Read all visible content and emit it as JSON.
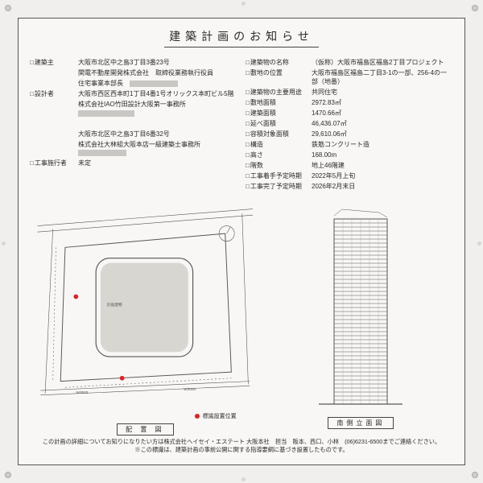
{
  "title": "建築計画のお知らせ",
  "left": [
    {
      "label": "建築主",
      "lines": [
        "大阪市北区中之島3丁目3番23号",
        "関電不動産開発株式会社　取締役業務執行役員",
        "住宅事業本部長　<R60>"
      ]
    },
    {
      "label": "設計者",
      "lines": [
        "大阪市西区西本町1丁目4番1号オリックス本町ビル5階",
        "株式会社IAO竹田設計大阪第一事務所　<R70>",
        "",
        "大阪市北区中之島3丁目6番32号",
        "株式会社大林組大阪本店一級建築士事務所　<R60>"
      ]
    },
    {
      "label": "工事施行者",
      "lines": [
        "未定"
      ]
    }
  ],
  "right": [
    {
      "label": "建築物の名称",
      "value": "（仮称）大阪市福島区福島2丁目プロジェクト"
    },
    {
      "label": "敷地の位置",
      "value": "大阪市福島区福島二丁目3-1の一部、256-4の一部（地番）"
    },
    {
      "label": "建築物の主要用途",
      "value": "共同住宅"
    },
    {
      "label": "敷地面積",
      "value": "2972.83㎡"
    },
    {
      "label": "建築面積",
      "value": "1470.66㎡"
    },
    {
      "label": "延べ面積",
      "value": "46,436.07㎡"
    },
    {
      "label": "容積対象面積",
      "value": "29,610.06㎡"
    },
    {
      "label": "構造",
      "value": "鉄筋コンクリート造"
    },
    {
      "label": "高さ",
      "value": "168.00m"
    },
    {
      "label": "階数",
      "value": "地上46階建"
    },
    {
      "label": "工事着手予定時期",
      "value": "2022年5月上旬"
    },
    {
      "label": "工事完了予定時期",
      "value": "2026年2月末日"
    }
  ],
  "captions": {
    "plan": "配 置 図",
    "elevation": "南側立面図"
  },
  "legend": "標識設置位置",
  "footer1": "この計画の詳細についてお知りになりたい方は株式会社ヘイセイ・エステート 大阪本社　担当　阪本、西口、小林　(06)6231-6500までご連絡ください。",
  "footer2": "※この標識は、建築計画の事前公開に関する指導要綱に基づき設置したものです。",
  "colors": {
    "line": "#444",
    "marker": "#d22",
    "fill": "#d8d6d0",
    "bldg": "#888"
  },
  "elevation": {
    "floors": 46,
    "crown_style": "angled"
  },
  "plan": {
    "outline": "polygon",
    "markers": [
      [
        60,
        122
      ],
      [
        120,
        228
      ]
    ],
    "north_angle": 25
  }
}
